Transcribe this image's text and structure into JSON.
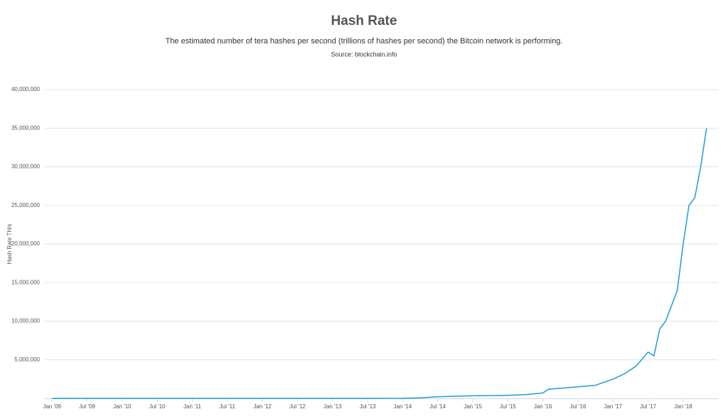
{
  "chart_data": {
    "type": "line",
    "title": "Hash Rate",
    "subtitle": "The estimated number of tera hashes per second (trillions of hashes per second) the Bitcoin network is performing.",
    "source": "Source: blockchain.info",
    "ylabel": "Hash Rate TH/s",
    "x": [
      "2009-01",
      "2009-07",
      "2010-01",
      "2010-07",
      "2011-01",
      "2011-07",
      "2012-01",
      "2012-07",
      "2013-01",
      "2013-07",
      "2014-01",
      "2014-04",
      "2014-07",
      "2014-10",
      "2015-01",
      "2015-04",
      "2015-07",
      "2015-10",
      "2016-01",
      "2016-02",
      "2016-04",
      "2016-07",
      "2016-10",
      "2017-01",
      "2017-03",
      "2017-05",
      "2017-07",
      "2017-08",
      "2017-09",
      "2017-10",
      "2017-11",
      "2017-12",
      "2018-01",
      "2018-02",
      "2018-03",
      "2018-04",
      "2018-05"
    ],
    "series": [
      {
        "name": "Hash Rate",
        "color": "#1e9cd7",
        "values": [
          0,
          0,
          0,
          0,
          0,
          10,
          10,
          20,
          30,
          300,
          10000,
          60000,
          200000,
          280000,
          330000,
          360000,
          400000,
          480000,
          700000,
          1200000,
          1300000,
          1500000,
          1700000,
          2500000,
          3200000,
          4200000,
          6000000,
          5500000,
          9000000,
          10000000,
          12000000,
          14000000,
          20000000,
          25000000,
          26000000,
          30000000,
          35000000
        ]
      }
    ],
    "xlim": [
      "2008-12",
      "2018-06"
    ],
    "xticks": [
      {
        "value": "2009-01",
        "label": "Jan '09"
      },
      {
        "value": "2009-07",
        "label": "Jul '09"
      },
      {
        "value": "2010-01",
        "label": "Jan '10"
      },
      {
        "value": "2010-07",
        "label": "Jul '10"
      },
      {
        "value": "2011-01",
        "label": "Jan '11"
      },
      {
        "value": "2011-07",
        "label": "Jul '11"
      },
      {
        "value": "2012-01",
        "label": "Jan '12"
      },
      {
        "value": "2012-07",
        "label": "Jul '12"
      },
      {
        "value": "2013-01",
        "label": "Jan '13"
      },
      {
        "value": "2013-07",
        "label": "Jul '13"
      },
      {
        "value": "2014-01",
        "label": "Jan '14"
      },
      {
        "value": "2014-07",
        "label": "Jul '14"
      },
      {
        "value": "2015-01",
        "label": "Jan '15"
      },
      {
        "value": "2015-07",
        "label": "Jul '15"
      },
      {
        "value": "2016-01",
        "label": "Jan '16"
      },
      {
        "value": "2016-07",
        "label": "Jul '16"
      },
      {
        "value": "2017-01",
        "label": "Jan '17"
      },
      {
        "value": "2017-07",
        "label": "Jul '17"
      },
      {
        "value": "2018-01",
        "label": "Jan '18"
      }
    ],
    "ylim": [
      0,
      40000000
    ],
    "yticks": [
      {
        "value": 5000000,
        "label": "5,000,000"
      },
      {
        "value": 10000000,
        "label": "10,000,000"
      },
      {
        "value": 15000000,
        "label": "15,000,000"
      },
      {
        "value": 20000000,
        "label": "20,000,000"
      },
      {
        "value": 25000000,
        "label": "25,000,000"
      },
      {
        "value": 30000000,
        "label": "30,000,000"
      },
      {
        "value": 35000000,
        "label": "35,000,000"
      },
      {
        "value": 40000000,
        "label": "40,000,000"
      }
    ],
    "grid": true
  }
}
